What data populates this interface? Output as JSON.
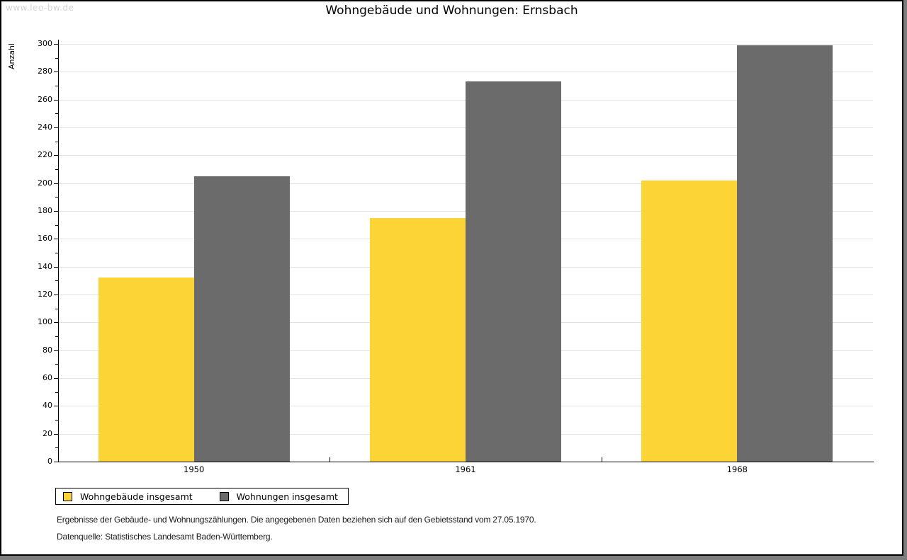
{
  "watermark": "www.leo-bw.de",
  "chart_data": {
    "type": "bar",
    "title": "Wohngebäude und Wohnungen: Ernsbach",
    "categories": [
      "1950",
      "1961",
      "1968"
    ],
    "series": [
      {
        "name": "Wohngebäude insgesamt",
        "color": "#FCD435",
        "values": [
          132,
          175,
          202
        ]
      },
      {
        "name": "Wohnungen insgesamt",
        "color": "#6B6B6B",
        "values": [
          205,
          273,
          299
        ]
      }
    ],
    "xlabel": "",
    "ylabel": "Anzahl",
    "ylim": [
      0,
      300
    ],
    "yticks": [
      0,
      20,
      40,
      60,
      80,
      100,
      120,
      140,
      160,
      180,
      200,
      220,
      240,
      260,
      280,
      300
    ],
    "minor_tick_step": 10,
    "grid": true,
    "gridline_color": "#e2e2e2",
    "legend_position": "bottom-left"
  },
  "footnotes": {
    "line1": "Ergebnisse der Gebäude- und Wohnungszählungen. Die angegebenen Daten beziehen sich auf den Gebietsstand vom 27.05.1970.",
    "line2": "Datenquelle: Statistisches Landesamt Baden-Württemberg."
  }
}
